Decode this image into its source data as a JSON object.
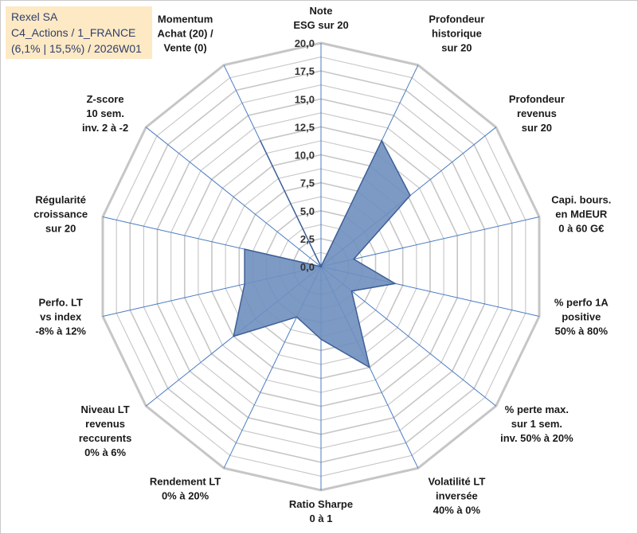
{
  "title_box": {
    "line1": "Rexel SA",
    "line2": "C4_Actions / 1_FRANCE",
    "line3": "(6,1% | 15,5%) / 2026W01"
  },
  "colors": {
    "grid": "#c6c6c6",
    "spoke": "#4a7cc3",
    "fill": "#6f8fbf",
    "stroke": "#3d5f96",
    "title_bg": "#fde9c4",
    "title_text": "#2f3f6e"
  },
  "chart_data": {
    "type": "radar",
    "series": [
      {
        "name": "Rexel SA",
        "values": [
          0,
          12.5,
          10.2,
          3,
          6.8,
          3.5,
          10,
          6.5,
          5,
          10,
          7,
          7,
          0,
          12.5
        ]
      }
    ],
    "categories": [
      [
        "Note",
        "ESG sur 20"
      ],
      [
        "Profondeur",
        "historique",
        "sur 20"
      ],
      [
        "Profondeur",
        "revenus",
        "sur 20"
      ],
      [
        "Capi. bours.",
        "en MdEUR",
        "0 à 60 G€"
      ],
      [
        "% perfo 1A",
        "positive",
        "50% à 80%"
      ],
      [
        "% perte max.",
        "sur 1 sem.",
        "inv. 50% à 20%"
      ],
      [
        "Volatilité LT",
        "inversée",
        "40% à 0%"
      ],
      [
        "Ratio Sharpe",
        "0 à 1"
      ],
      [
        "Rendement LT",
        "0% à 20%"
      ],
      [
        "Niveau LT",
        "revenus",
        "reccurents",
        "0% à 6%"
      ],
      [
        "Perfo. LT",
        "vs index",
        "-8% à 12%"
      ],
      [
        "Régularité",
        "croissance",
        "sur 20"
      ],
      [
        "Z-score",
        "10 sem.",
        "inv. 2 à -2"
      ],
      [
        "Momentum",
        "Achat (20) /",
        "Vente (0)"
      ]
    ],
    "rlim": [
      0,
      20
    ],
    "ticks": [
      "0,0",
      "2,5",
      "5,0",
      "7,5",
      "10,0",
      "12,5",
      "15,0",
      "17,5",
      "20,0"
    ],
    "grid_rings": 16
  }
}
